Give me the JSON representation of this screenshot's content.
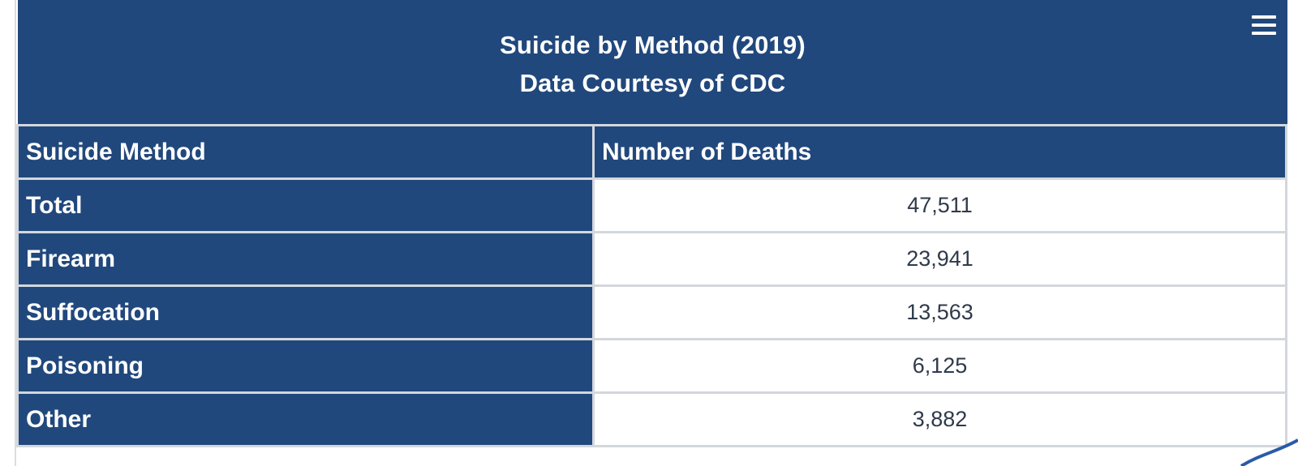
{
  "header": {
    "title": "Suicide by Method (2019)",
    "subtitle": "Data Courtesy of CDC",
    "menu_icon": "hamburger-menu-icon"
  },
  "table": {
    "columns": [
      "Suicide Method",
      "Number of Deaths"
    ],
    "rows": [
      {
        "method": "Total",
        "deaths": "47,511"
      },
      {
        "method": "Firearm",
        "deaths": "23,941"
      },
      {
        "method": "Suffocation",
        "deaths": "13,563"
      },
      {
        "method": "Poisoning",
        "deaths": "6,125"
      },
      {
        "method": "Other",
        "deaths": "3,882"
      }
    ]
  },
  "colors": {
    "header_bg": "#21487c",
    "grid": "#d3d7dc",
    "value_text": "#2f3a4a"
  }
}
